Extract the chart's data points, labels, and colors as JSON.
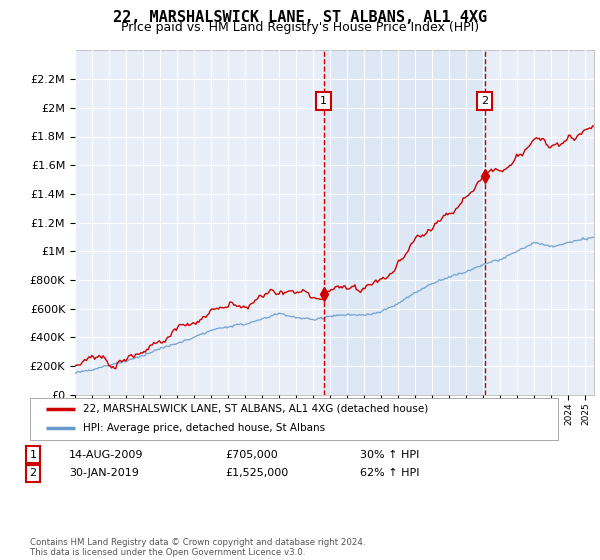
{
  "title": "22, MARSHALSWICK LANE, ST ALBANS, AL1 4XG",
  "subtitle": "Price paid vs. HM Land Registry's House Price Index (HPI)",
  "legend_line1": "22, MARSHALSWICK LANE, ST ALBANS, AL1 4XG (detached house)",
  "legend_line2": "HPI: Average price, detached house, St Albans",
  "annotation1_date": "14-AUG-2009",
  "annotation1_price": "£705,000",
  "annotation1_hpi": "30% ↑ HPI",
  "annotation2_date": "30-JAN-2019",
  "annotation2_price": "£1,525,000",
  "annotation2_hpi": "62% ↑ HPI",
  "sale1_t": 2009.62,
  "sale1_p": 705000,
  "sale2_t": 2019.08,
  "sale2_p": 1525000,
  "ylim": [
    0,
    2400000
  ],
  "xlim": [
    1995.0,
    2025.5
  ],
  "background_color": "#ffffff",
  "plot_bg_color": "#e8eef8",
  "grid_color": "#ffffff",
  "red_line_color": "#cc0000",
  "blue_line_color": "#6699cc",
  "shade_color": "#dde8f5",
  "vline_color": "#cc0000",
  "footnote": "Contains HM Land Registry data © Crown copyright and database right 2024.\nThis data is licensed under the Open Government Licence v3.0.",
  "yticks": [
    0,
    200000,
    400000,
    600000,
    800000,
    1000000,
    1200000,
    1400000,
    1600000,
    1800000,
    2000000,
    2200000
  ],
  "ytick_labels": [
    "£0",
    "£200K",
    "£400K",
    "£600K",
    "£800K",
    "£1M",
    "£1.2M",
    "£1.4M",
    "£1.6M",
    "£1.8M",
    "£2M",
    "£2.2M"
  ],
  "title_fontsize": 11,
  "subtitle_fontsize": 9
}
